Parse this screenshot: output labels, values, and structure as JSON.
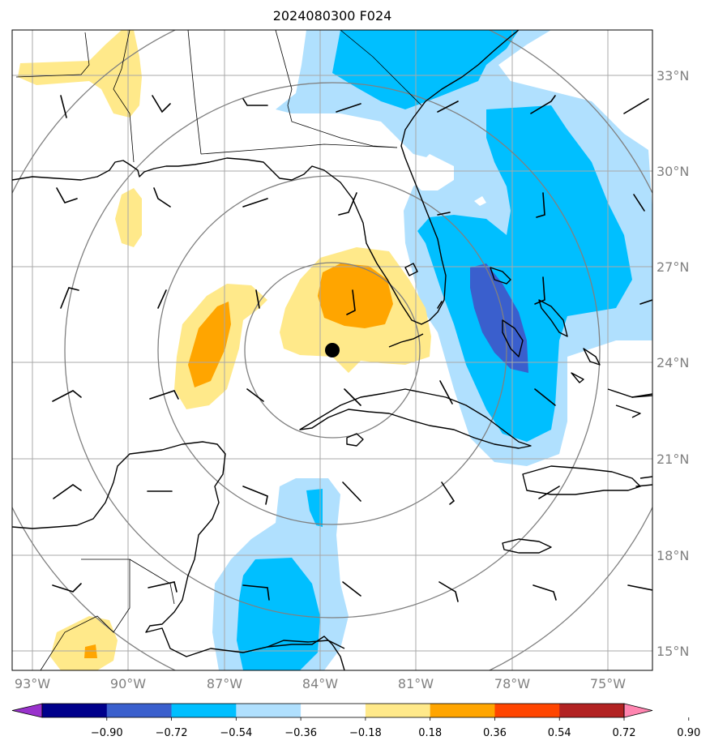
{
  "title": "2024080300 F024",
  "lon_labels": [
    "93°W",
    "90°W",
    "87°W",
    "84°W",
    "81°W",
    "78°W",
    "75°W"
  ],
  "lat_labels": [
    "33°N",
    "30°N",
    "27°N",
    "24°N",
    "21°N",
    "18°N",
    "15°N"
  ],
  "colorbar": {
    "ticks": [
      "−0.90",
      "−0.72",
      "−0.54",
      "−0.36",
      "−0.18",
      "0.18",
      "0.36",
      "0.54",
      "0.72",
      "0.90"
    ],
    "colors": [
      "#9932cc",
      "#00008b",
      "#3a5fcd",
      "#00bfff",
      "#b0e0fe",
      "#ffffff",
      "#ffe98a",
      "#ffa500",
      "#ff4500",
      "#b22222",
      "#ff85b0"
    ]
  },
  "storm_center": {
    "lon": -83.6,
    "lat": 24.3
  }
}
